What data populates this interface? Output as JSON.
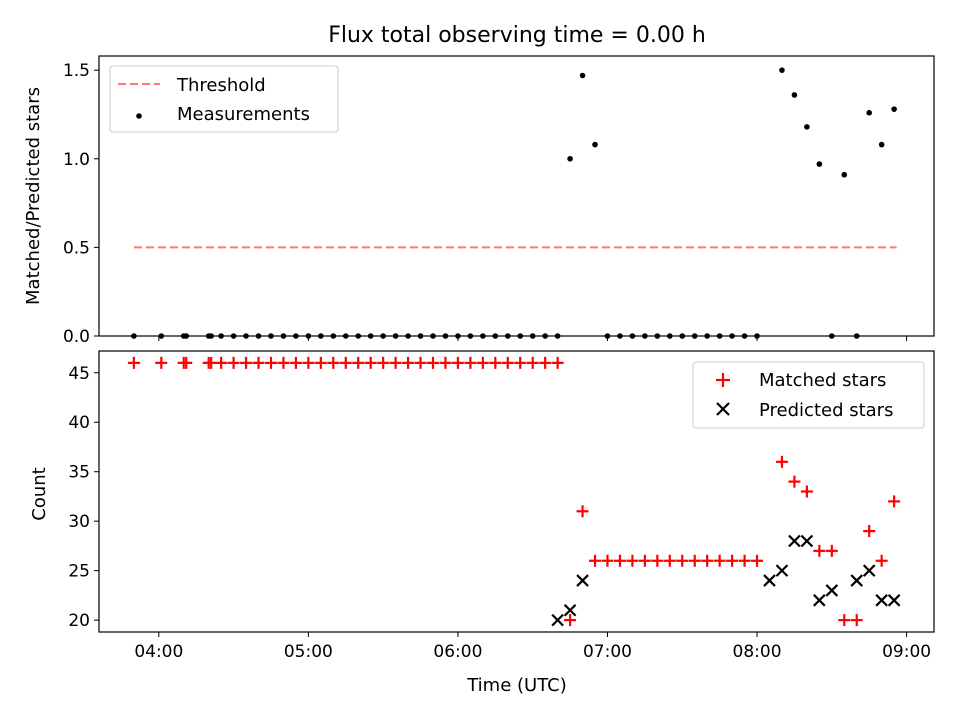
{
  "figure": {
    "title": "Flux total observing time = 0.00 h"
  },
  "colors": {
    "threshold": "#ff7777",
    "measurement": "#000000",
    "matched": "#ff0000",
    "predicted": "#000000"
  },
  "chart_data": [
    {
      "type": "scatter",
      "name": "ratio",
      "ylabel": "Matched/Predicted stars",
      "xlim": [
        "03:36",
        "09:11"
      ],
      "ylim": [
        0,
        1.58
      ],
      "xticks": [
        "04:00",
        "05:00",
        "06:00",
        "07:00",
        "08:00",
        "09:00"
      ],
      "yticks": [
        0.0,
        0.5,
        1.0,
        1.5
      ],
      "ytick_labels": [
        "0.0",
        "0.5",
        "1.0",
        "1.5"
      ],
      "legend": {
        "position": "top-left",
        "entries": [
          "Threshold",
          "Measurements"
        ]
      },
      "grid": false,
      "series": [
        {
          "name": "Threshold",
          "style": "dashed-line",
          "x": [
            "03:50",
            "08:56"
          ],
          "y": [
            0.5,
            0.5
          ]
        },
        {
          "name": "Measurements",
          "style": "dots",
          "x": [
            "03:50",
            "04:01",
            "04:10",
            "04:11",
            "04:20",
            "04:21",
            "04:25",
            "04:30",
            "04:35",
            "04:40",
            "04:45",
            "04:50",
            "04:55",
            "05:00",
            "05:05",
            "05:10",
            "05:15",
            "05:20",
            "05:25",
            "05:30",
            "05:35",
            "05:40",
            "05:45",
            "05:50",
            "05:55",
            "06:00",
            "06:05",
            "06:10",
            "06:15",
            "06:20",
            "06:25",
            "06:30",
            "06:35",
            "06:40",
            "06:45",
            "06:50",
            "06:55",
            "07:00",
            "07:05",
            "07:10",
            "07:15",
            "07:20",
            "07:25",
            "07:30",
            "07:35",
            "07:40",
            "07:45",
            "07:50",
            "07:55",
            "08:00",
            "08:10",
            "08:15",
            "08:20",
            "08:25",
            "08:30",
            "08:35",
            "08:40",
            "08:45",
            "08:50",
            "08:55"
          ],
          "y": [
            0,
            0,
            0,
            0,
            0,
            0,
            0,
            0,
            0,
            0,
            0,
            0,
            0,
            0,
            0,
            0,
            0,
            0,
            0,
            0,
            0,
            0,
            0,
            0,
            0,
            0,
            0,
            0,
            0,
            0,
            0,
            0,
            0,
            0,
            1.0,
            1.47,
            1.08,
            0,
            0,
            0,
            0,
            0,
            0,
            0,
            0,
            0,
            0,
            0,
            0,
            0,
            1.5,
            1.36,
            1.18,
            0.97,
            0,
            0.91,
            0,
            1.26,
            1.08,
            1.28
          ]
        }
      ]
    },
    {
      "type": "scatter",
      "name": "counts",
      "xlabel": "Time (UTC)",
      "ylabel": "Count",
      "xlim": [
        "03:36",
        "09:11"
      ],
      "ylim": [
        18.8,
        47.2
      ],
      "xticks": [
        "04:00",
        "05:00",
        "06:00",
        "07:00",
        "08:00",
        "09:00"
      ],
      "yticks": [
        20,
        25,
        30,
        35,
        40,
        45
      ],
      "legend": {
        "position": "top-right",
        "entries": [
          "Matched stars",
          "Predicted stars"
        ]
      },
      "grid": false,
      "series": [
        {
          "name": "Matched stars",
          "marker": "plus",
          "x": [
            "03:50",
            "04:01",
            "04:10",
            "04:11",
            "04:20",
            "04:21",
            "04:25",
            "04:30",
            "04:35",
            "04:40",
            "04:45",
            "04:50",
            "04:55",
            "05:00",
            "05:05",
            "05:10",
            "05:15",
            "05:20",
            "05:25",
            "05:30",
            "05:35",
            "05:40",
            "05:45",
            "05:50",
            "05:55",
            "06:00",
            "06:05",
            "06:10",
            "06:15",
            "06:20",
            "06:25",
            "06:30",
            "06:35",
            "06:40",
            "06:45",
            "06:50",
            "06:55",
            "07:00",
            "07:05",
            "07:10",
            "07:15",
            "07:20",
            "07:25",
            "07:30",
            "07:35",
            "07:40",
            "07:45",
            "07:50",
            "07:55",
            "08:00",
            "08:10",
            "08:15",
            "08:20",
            "08:25",
            "08:30",
            "08:35",
            "08:40",
            "08:45",
            "08:50",
            "08:55"
          ],
          "y": [
            46,
            46,
            46,
            46,
            46,
            46,
            46,
            46,
            46,
            46,
            46,
            46,
            46,
            46,
            46,
            46,
            46,
            46,
            46,
            46,
            46,
            46,
            46,
            46,
            46,
            46,
            46,
            46,
            46,
            46,
            46,
            46,
            46,
            46,
            20,
            31,
            26,
            26,
            26,
            26,
            26,
            26,
            26,
            26,
            26,
            26,
            26,
            26,
            26,
            26,
            36,
            34,
            33,
            27,
            27,
            20,
            20,
            29,
            26,
            32
          ]
        },
        {
          "name": "Predicted stars",
          "marker": "x",
          "x": [
            "06:40",
            "06:45",
            "06:50",
            "08:05",
            "08:10",
            "08:15",
            "08:20",
            "08:25",
            "08:30",
            "08:40",
            "08:45",
            "08:50",
            "08:55"
          ],
          "y": [
            20,
            21,
            24,
            24,
            25,
            28,
            28,
            22,
            23,
            24,
            25,
            22,
            22
          ]
        }
      ]
    }
  ]
}
